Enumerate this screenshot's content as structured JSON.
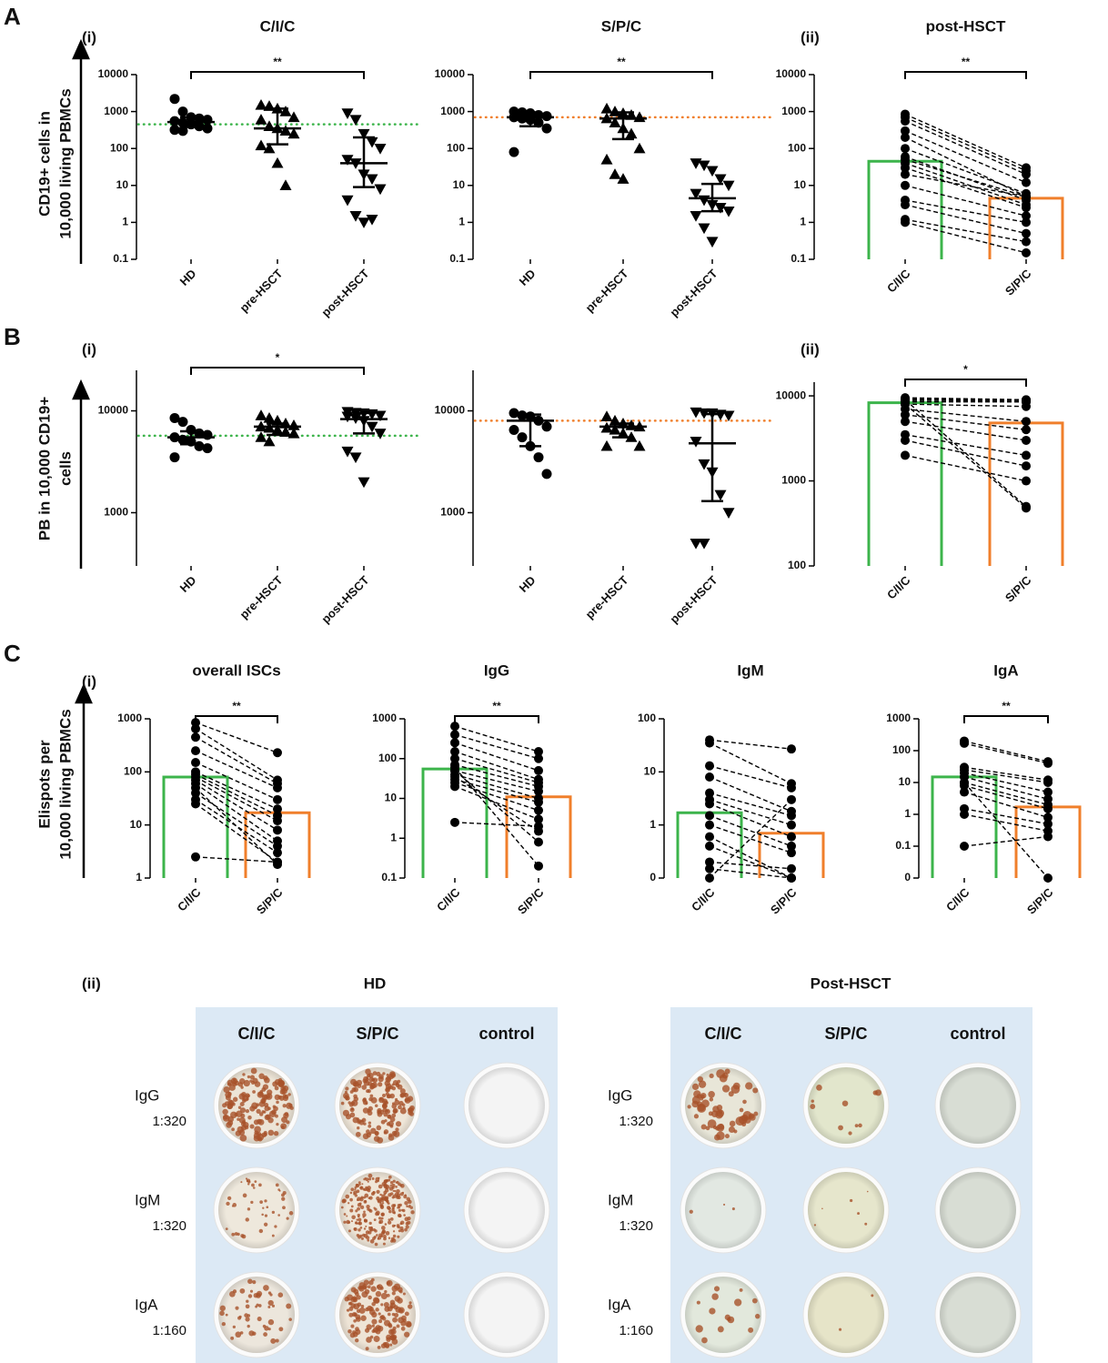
{
  "figure": {
    "rows": [
      {
        "label": "A",
        "y_label": [
          "CD19+ cells in",
          "10,000 living PBMCs"
        ]
      },
      {
        "label": "B",
        "y_label": [
          "PB in 10,000 CD19+",
          "cells"
        ]
      },
      {
        "label": "C",
        "y_label": [
          "Elispots per",
          "10,000 living PBMCs"
        ]
      }
    ]
  },
  "chart_data": [
    {
      "type": "dot",
      "title": "C/I/C",
      "sublabel": "(i)",
      "log_y": true,
      "ylim": [
        0.1,
        10000
      ],
      "yticks": [
        0.1,
        1,
        10,
        100,
        1000,
        10000
      ],
      "categories": [
        "HD",
        "pre-HSCT",
        "post-HSCT"
      ],
      "groups": [
        {
          "marker": "circle",
          "values": [
            2200,
            1000,
            700,
            650,
            600,
            550,
            500,
            450,
            400,
            350,
            320,
            300
          ],
          "median": 520,
          "error": [
            380,
            700
          ]
        },
        {
          "marker": "triangle-up",
          "values": [
            1500,
            1400,
            1200,
            1000,
            700,
            600,
            400,
            350,
            300,
            250,
            120,
            100,
            40,
            10
          ],
          "median": 350,
          "error": [
            130,
            1200
          ]
        },
        {
          "marker": "triangle-down",
          "values": [
            900,
            600,
            250,
            150,
            100,
            50,
            40,
            20,
            15,
            8,
            4,
            1.5,
            1,
            1.2
          ],
          "median": 40,
          "error": [
            9,
            200
          ]
        }
      ],
      "reference_line": {
        "value": 450,
        "color": "#3cb44b"
      },
      "significance": {
        "label": "**",
        "from": 0,
        "to": 2
      }
    },
    {
      "type": "dot",
      "title": "S/P/C",
      "log_y": true,
      "ylim": [
        0.1,
        10000
      ],
      "yticks": [
        0.1,
        1,
        10,
        100,
        1000,
        10000
      ],
      "categories": [
        "HD",
        "pre-HSCT",
        "post-HSCT"
      ],
      "groups": [
        {
          "marker": "circle",
          "values": [
            1000,
            950,
            900,
            800,
            750,
            700,
            650,
            600,
            500,
            350,
            80
          ],
          "median": 700,
          "error": [
            400,
            950
          ]
        },
        {
          "marker": "triangle-up",
          "values": [
            1200,
            1000,
            900,
            800,
            700,
            650,
            500,
            350,
            250,
            100,
            50,
            20,
            15
          ],
          "median": 650,
          "error": [
            180,
            950
          ]
        },
        {
          "marker": "triangle-down",
          "values": [
            40,
            35,
            25,
            15,
            10,
            6,
            4,
            3,
            2.5,
            2,
            1.5,
            0.7,
            0.3
          ],
          "median": 4.5,
          "error": [
            2,
            11
          ]
        }
      ],
      "reference_line": {
        "value": 700,
        "color": "#f07f2b"
      },
      "significance": {
        "label": "**",
        "from": 0,
        "to": 2
      }
    },
    {
      "type": "paired",
      "title": "post-HSCT",
      "sublabel": "(ii)",
      "log_y": true,
      "ylim": [
        0.1,
        10000
      ],
      "yticks": [
        0.1,
        1,
        10,
        100,
        1000,
        10000
      ],
      "categories": [
        "C/I/C",
        "S/P/C"
      ],
      "bars": [
        45,
        4.5
      ],
      "bar_colors": [
        "#3cb44b",
        "#f07f2b"
      ],
      "pairs": [
        [
          850,
          30
        ],
        [
          700,
          25
        ],
        [
          550,
          20
        ],
        [
          300,
          12
        ],
        [
          200,
          5
        ],
        [
          100,
          6
        ],
        [
          60,
          4
        ],
        [
          50,
          5
        ],
        [
          40,
          3
        ],
        [
          30,
          2.5
        ],
        [
          20,
          5
        ],
        [
          10,
          1.5
        ],
        [
          4,
          1
        ],
        [
          3,
          0.5
        ],
        [
          1.2,
          0.3
        ],
        [
          1,
          0.15
        ]
      ],
      "significance": {
        "label": "**",
        "from": 0,
        "to": 1
      }
    },
    {
      "type": "dot",
      "sublabel": "(i)",
      "log_y": true,
      "ylim": [
        300,
        25000
      ],
      "yticks": [
        1000,
        10000
      ],
      "categories": [
        "HD",
        "pre-HSCT",
        "post-HSCT"
      ],
      "groups": [
        {
          "marker": "circle",
          "values": [
            8500,
            7800,
            6500,
            6000,
            5800,
            5500,
            5200,
            5000,
            4500,
            4300,
            3500
          ],
          "median": 5500,
          "error": [
            4700,
            6300
          ]
        },
        {
          "marker": "triangle-up",
          "values": [
            9000,
            8500,
            8000,
            7500,
            7200,
            7000,
            6800,
            6500,
            6200,
            6000,
            5500,
            5000
          ],
          "median": 7000,
          "error": [
            5800,
            7500
          ]
        },
        {
          "marker": "triangle-down",
          "values": [
            9800,
            9600,
            9500,
            9300,
            9000,
            8800,
            8500,
            8000,
            7000,
            6000,
            4000,
            3500,
            2000
          ],
          "median": 8300,
          "error": [
            6000,
            9500
          ]
        }
      ],
      "reference_line": {
        "value": 5700,
        "color": "#3cb44b"
      },
      "significance": {
        "label": "*",
        "from": 0,
        "to": 2
      }
    },
    {
      "type": "dot",
      "log_y": true,
      "ylim": [
        300,
        25000
      ],
      "yticks": [
        1000,
        10000
      ],
      "categories": [
        "HD",
        "pre-HSCT",
        "post-HSCT"
      ],
      "groups": [
        {
          "marker": "circle",
          "values": [
            9500,
            9000,
            8800,
            8000,
            7000,
            6500,
            5500,
            4500,
            3500,
            2400
          ],
          "median": 8000,
          "error": [
            4500,
            9200
          ]
        },
        {
          "marker": "triangle-up",
          "values": [
            8800,
            8000,
            7500,
            7200,
            7000,
            6800,
            6500,
            6000,
            5500,
            4500,
            4500
          ],
          "median": 7000,
          "error": [
            5500,
            7500
          ]
        },
        {
          "marker": "triangle-down",
          "values": [
            9700,
            9500,
            9500,
            9200,
            9000,
            5000,
            3000,
            2500,
            1500,
            1000,
            500,
            500
          ],
          "median": 4800,
          "error": [
            1300,
            9300
          ]
        }
      ],
      "reference_line": {
        "value": 8000,
        "color": "#f07f2b"
      }
    },
    {
      "type": "paired",
      "sublabel": "(ii)",
      "log_y": true,
      "ylim": [
        100,
        14500
      ],
      "yticks": [
        100,
        1000,
        10000
      ],
      "categories": [
        "C/I/C",
        "S/P/C"
      ],
      "bars": [
        8300,
        4800
      ],
      "bar_colors": [
        "#3cb44b",
        "#f07f2b"
      ],
      "pairs": [
        [
          9500,
          9000
        ],
        [
          9300,
          8800
        ],
        [
          9000,
          8500
        ],
        [
          8800,
          9000
        ],
        [
          8500,
          8500
        ],
        [
          8000,
          7500
        ],
        [
          7000,
          5000
        ],
        [
          6000,
          4000
        ],
        [
          5000,
          3000
        ],
        [
          3500,
          2000
        ],
        [
          3000,
          1500
        ],
        [
          2000,
          1000
        ],
        [
          9000,
          500
        ],
        [
          8000,
          480
        ]
      ],
      "significance": {
        "label": "*",
        "from": 0,
        "to": 1
      }
    },
    {
      "type": "paired",
      "title": "overall ISCs",
      "sublabel": "(i)",
      "log_y": true,
      "ylim": [
        1,
        1000
      ],
      "yticks": [
        1,
        10,
        100,
        1000
      ],
      "categories": [
        "C/I/C",
        "S/P/C"
      ],
      "bars": [
        80,
        17
      ],
      "bar_colors": [
        "#3cb44b",
        "#f07f2b"
      ],
      "pairs": [
        [
          850,
          230
        ],
        [
          650,
          70
        ],
        [
          450,
          60
        ],
        [
          250,
          50
        ],
        [
          150,
          30
        ],
        [
          100,
          20
        ],
        [
          90,
          15
        ],
        [
          80,
          12
        ],
        [
          70,
          8
        ],
        [
          60,
          5
        ],
        [
          40,
          4
        ],
        [
          30,
          3
        ],
        [
          25,
          2
        ],
        [
          2.5,
          2
        ],
        [
          50,
          1.8
        ]
      ],
      "significance": {
        "label": "**",
        "from": 0,
        "to": 1
      }
    },
    {
      "type": "paired",
      "title": "IgG",
      "log_y": true,
      "ylim": [
        0.1,
        1000
      ],
      "yticks": [
        0.1,
        1,
        10,
        100,
        1000
      ],
      "categories": [
        "C/I/C",
        "S/P/C"
      ],
      "bars": [
        55,
        11
      ],
      "bar_colors": [
        "#3cb44b",
        "#f07f2b"
      ],
      "pairs": [
        [
          650,
          150
        ],
        [
          400,
          100
        ],
        [
          250,
          50
        ],
        [
          150,
          30
        ],
        [
          100,
          25
        ],
        [
          70,
          20
        ],
        [
          50,
          15
        ],
        [
          40,
          10
        ],
        [
          30,
          8
        ],
        [
          25,
          5
        ],
        [
          20,
          3
        ],
        [
          2.5,
          2
        ],
        [
          35,
          1.5
        ],
        [
          50,
          0.8
        ],
        [
          60,
          0.2
        ]
      ],
      "significance": {
        "label": "**",
        "from": 0,
        "to": 1
      }
    },
    {
      "type": "paired",
      "title": "IgM",
      "log_y": true,
      "ylim": [
        0,
        100
      ],
      "yticks": [
        0,
        1,
        10,
        100
      ],
      "categories": [
        "C/I/C",
        "S/P/C"
      ],
      "bars": [
        1.7,
        0.7
      ],
      "bar_colors": [
        "#3cb44b",
        "#f07f2b"
      ],
      "pairs": [
        [
          40,
          27
        ],
        [
          35,
          6
        ],
        [
          13,
          5
        ],
        [
          8,
          1.8
        ],
        [
          4,
          1.5
        ],
        [
          3,
          1
        ],
        [
          2.5,
          0.6
        ],
        [
          1.5,
          0.4
        ],
        [
          1,
          0.3
        ],
        [
          0.6,
          0
        ],
        [
          0.4,
          0
        ],
        [
          0.2,
          0.15
        ],
        [
          0.15,
          0.1
        ],
        [
          0,
          3
        ]
      ]
    },
    {
      "type": "paired",
      "title": "IgA",
      "log_y": true,
      "ylim": [
        0,
        1000
      ],
      "yticks": [
        0,
        0.1,
        1,
        10,
        100,
        1000
      ],
      "categories": [
        "C/I/C",
        "S/P/C"
      ],
      "bars": [
        15,
        1.7
      ],
      "bar_colors": [
        "#3cb44b",
        "#f07f2b"
      ],
      "pairs": [
        [
          200,
          45
        ],
        [
          170,
          40
        ],
        [
          30,
          12
        ],
        [
          25,
          10
        ],
        [
          20,
          5
        ],
        [
          15,
          3
        ],
        [
          10,
          2
        ],
        [
          8,
          1.5
        ],
        [
          5,
          0.8
        ],
        [
          1.5,
          0.5
        ],
        [
          1,
          0.3
        ],
        [
          0.1,
          0.2
        ],
        [
          10,
          0
        ]
      ],
      "significance": {
        "label": "**",
        "from": 0,
        "to": 1
      }
    }
  ],
  "elispot": {
    "sublabel": "(ii)",
    "groups": [
      {
        "title": "HD",
        "columns": [
          "C/I/C",
          "S/P/C",
          "control"
        ],
        "rows": [
          {
            "isotype": "IgG",
            "dilution": "1:320"
          },
          {
            "isotype": "IgM",
            "dilution": "1:320"
          },
          {
            "isotype": "IgA",
            "dilution": "1:160"
          }
        ]
      },
      {
        "title": "Post-HSCT",
        "columns": [
          "C/I/C",
          "S/P/C",
          "control"
        ],
        "rows": [
          {
            "isotype": "IgG",
            "dilution": "1:320"
          },
          {
            "isotype": "IgM",
            "dilution": "1:320"
          },
          {
            "isotype": "IgA",
            "dilution": "1:160"
          }
        ]
      }
    ]
  }
}
